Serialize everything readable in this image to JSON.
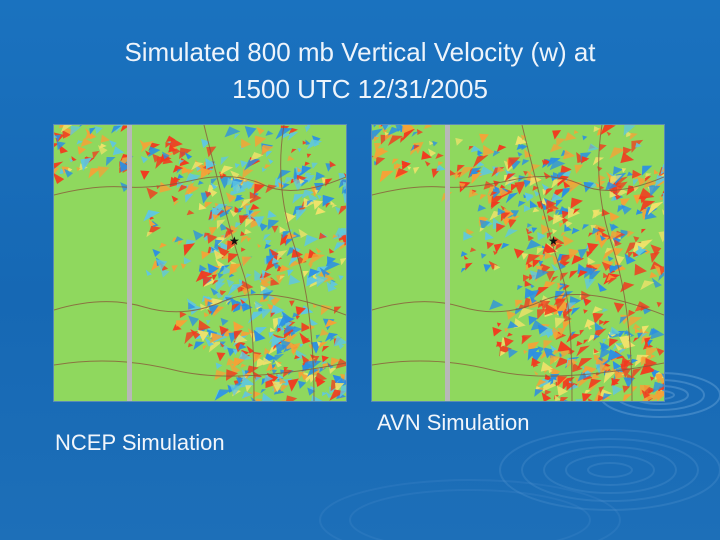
{
  "slide": {
    "title_line1": "Simulated 800 mb Vertical Velocity (w) at",
    "title_line2": "1500 UTC 12/31/2005"
  },
  "panels": [
    {
      "caption": "NCEP Simulation",
      "icon": "star-icon"
    },
    {
      "caption": "AVN Simulation",
      "icon": "star-icon"
    }
  ],
  "colors": {
    "background": "#1a6cb7",
    "land": "#8fd85e",
    "upward_motion": "#f23a1f",
    "moderate_upward": "#f5a237",
    "weak_motion": "#efe26a",
    "downward_motion": "#2b8fe3",
    "moderate_downward": "#5fc7e0"
  }
}
